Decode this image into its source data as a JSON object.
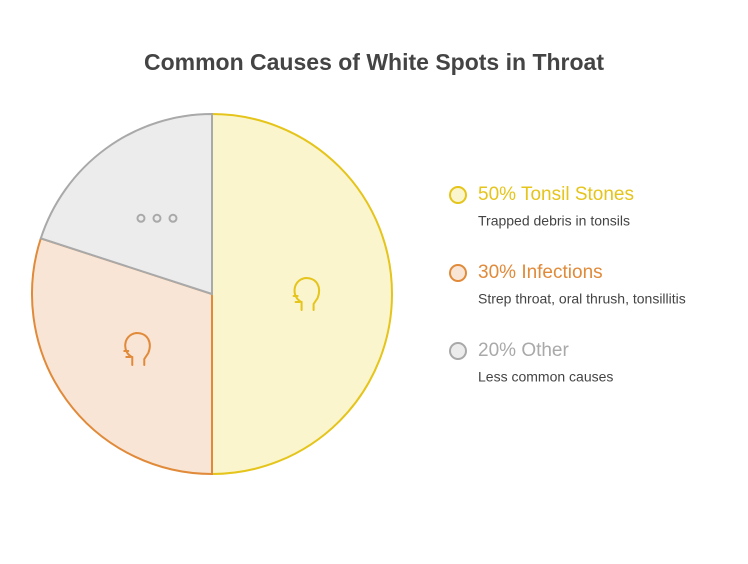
{
  "chart_data": {
    "type": "pie",
    "title": "Common Causes of White Spots in Throat",
    "categories": [
      "Tonsil Stones",
      "Infections",
      "Other"
    ],
    "values": [
      50,
      30,
      20
    ],
    "value_labels": [
      "50%",
      "30%",
      "20%"
    ],
    "descriptions": [
      "Trapped debris in tonsils",
      "Strep throat, oral thrush, tonsillitis",
      "Less common causes"
    ],
    "colors": [
      "#e5c41b",
      "#e08a3a",
      "#a9a9a9"
    ],
    "fills": [
      "#faf5cc",
      "#f9e5d6",
      "#ececec"
    ]
  }
}
